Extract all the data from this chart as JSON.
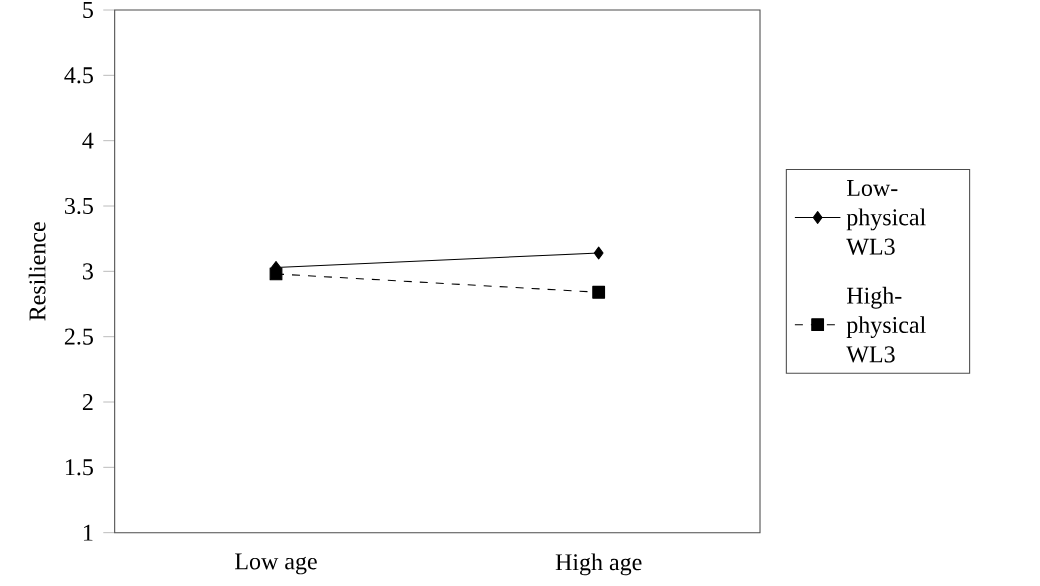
{
  "chart_data": {
    "type": "line",
    "ylabel": "Resilience",
    "categories": [
      "Low age",
      "High age"
    ],
    "series": [
      {
        "name": "Low-physical WL3",
        "color": "#000000",
        "values": [
          3.03,
          3.14
        ],
        "marker": "diamond",
        "line_style": "solid"
      },
      {
        "name": "High-physical WL3",
        "color": "#000000",
        "values": [
          2.98,
          2.84
        ],
        "marker": "square",
        "line_style": "dashed"
      }
    ],
    "ylim": [
      1,
      5
    ],
    "yticks": [
      1,
      1.5,
      2,
      2.5,
      3,
      3.5,
      4,
      4.5,
      5
    ],
    "grid": false,
    "legend": "right"
  }
}
